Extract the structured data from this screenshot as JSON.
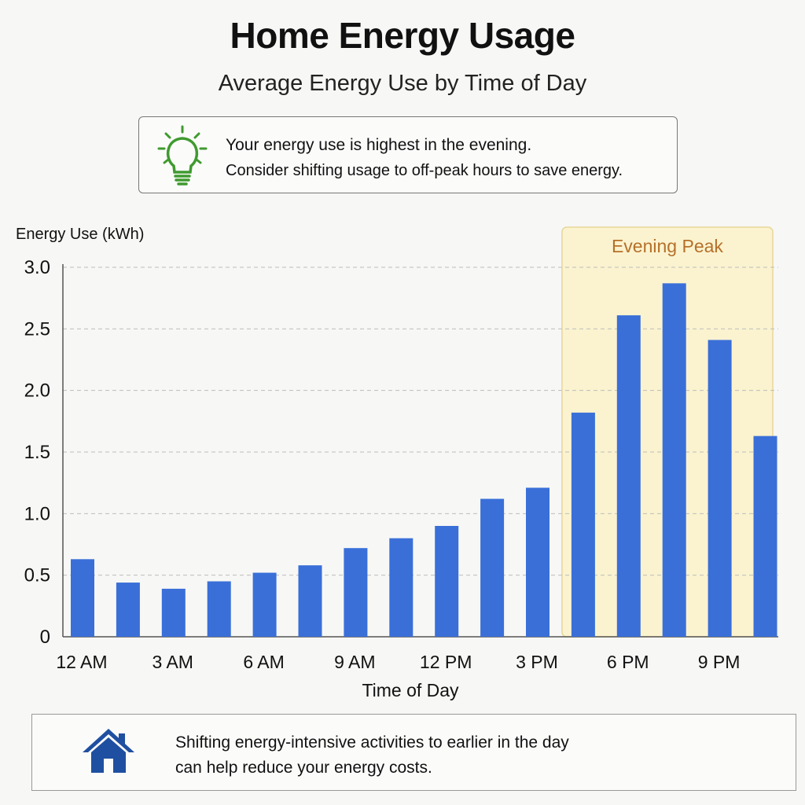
{
  "header": {
    "title": "Home Energy Usage",
    "subtitle": "Average Energy Use by Time of Day"
  },
  "tip": {
    "icon": "lightbulb-icon",
    "line1": "Your energy use is highest in the evening.",
    "line2": "Consider shifting usage to off-peak hours to save energy."
  },
  "footer": {
    "icon": "home-icon",
    "line1": "Shifting energy-intensive activities to earlier in the day",
    "line2": "can help reduce your energy costs."
  },
  "colors": {
    "bar": "#3a6fd8",
    "peak_fill": "#fbf3cf",
    "peak_border": "#e6d79a",
    "peak_label": "#b5702a",
    "bulb": "#3f9a2f",
    "house": "#1f4fa0"
  },
  "chart_data": {
    "type": "bar",
    "title": "",
    "xlabel": "Time of Day",
    "ylabel": "Energy Use (kWh)",
    "ylim": [
      0,
      3.0
    ],
    "yticks": [
      0,
      0.5,
      1.0,
      1.5,
      2.0,
      2.5,
      3.0
    ],
    "ytick_labels": [
      "0",
      "0.5",
      "1.0",
      "1.5",
      "2.0",
      "2.5",
      "3.0"
    ],
    "tick_labels": [
      "12 AM",
      "3 AM",
      "6 AM",
      "9 AM",
      "12 PM",
      "3 PM",
      "6 PM",
      "9 PM"
    ],
    "values": [
      0.63,
      0.44,
      0.39,
      0.45,
      0.52,
      0.58,
      0.72,
      0.8,
      0.9,
      1.12,
      1.21,
      1.82,
      2.61,
      2.87,
      2.41,
      1.63
    ],
    "grid": true,
    "highlight": {
      "label": "Evening Peak",
      "from_bar": 11,
      "to_bar": 15
    }
  }
}
